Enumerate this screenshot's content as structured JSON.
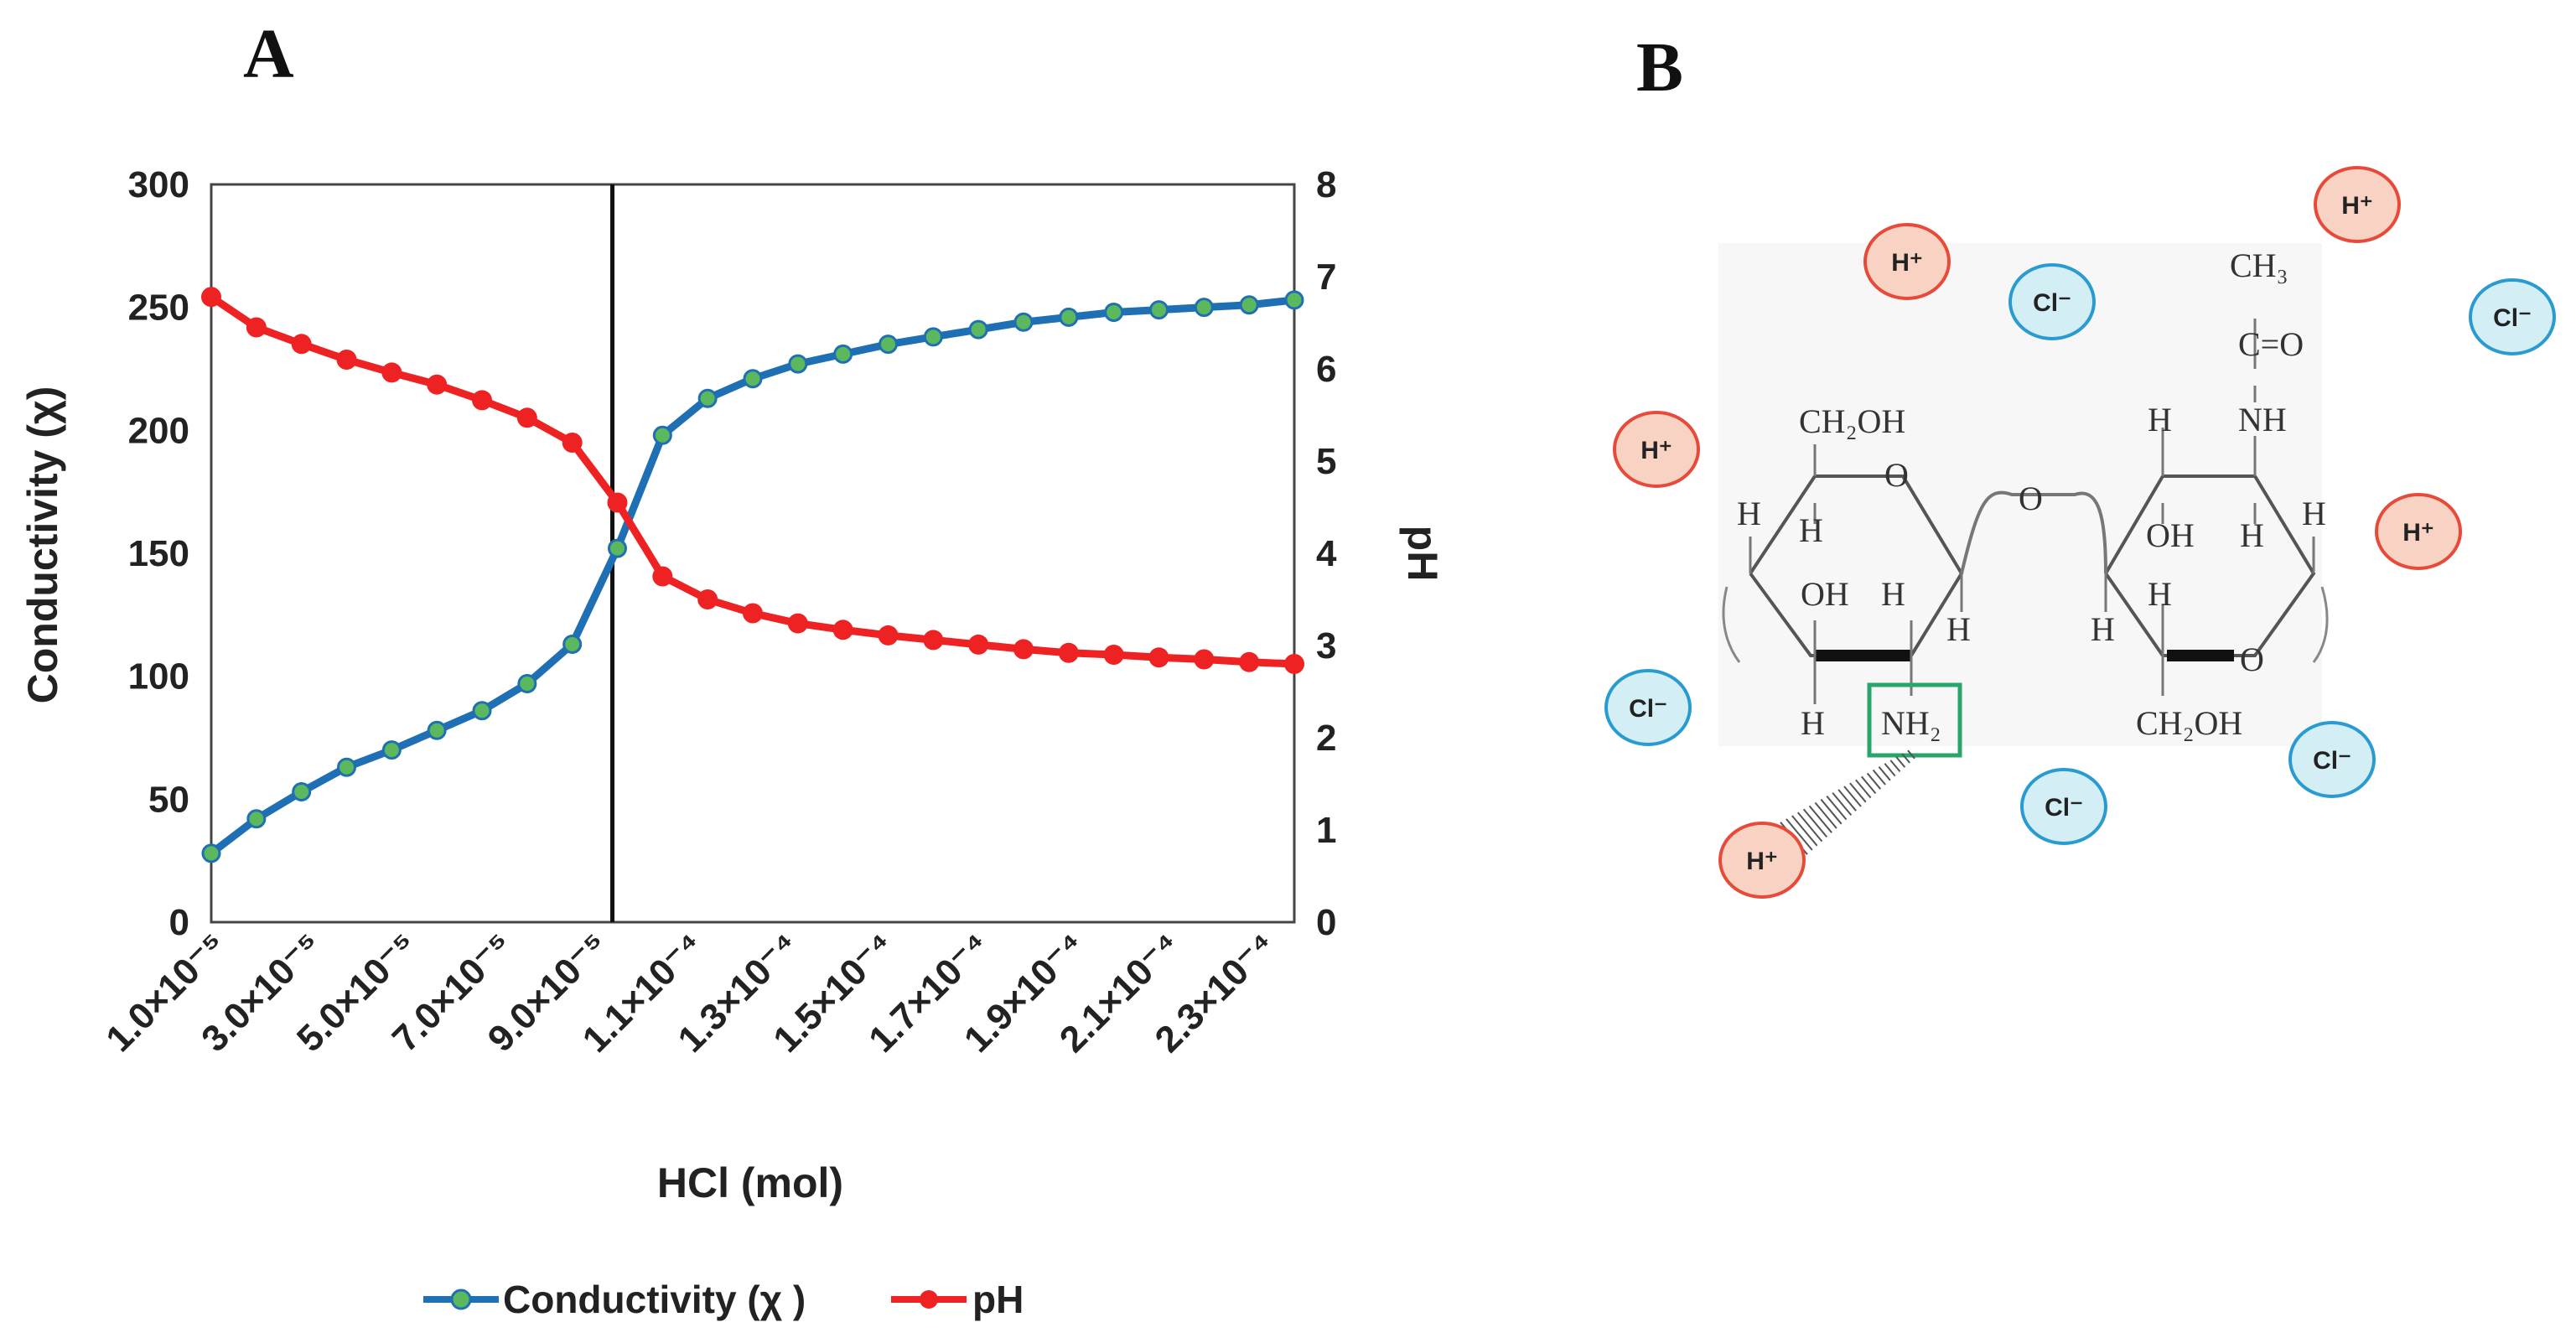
{
  "panels": {
    "a_letter": "A",
    "b_letter": "B"
  },
  "chart_data": {
    "type": "line",
    "x_tick_labels": [
      "1.0×10⁻⁵",
      "3.0×10⁻⁵",
      "5.0×10⁻⁵",
      "7.0×10⁻⁵",
      "9.0×10⁻⁵",
      "1.1×10⁻⁴",
      "1.3×10⁻⁴",
      "1.5×10⁻⁴",
      "1.7×10⁻⁴",
      "1.9×10⁻⁴",
      "2.1×10⁻⁴",
      "2.3×10⁻⁴"
    ],
    "x": [
      1e-05,
      1.5e-05,
      2e-05,
      2.5e-05,
      3e-05,
      3.5e-05,
      4e-05,
      4.5e-05,
      5e-05,
      5.5e-05,
      6e-05,
      6.5e-05,
      7e-05,
      7.5e-05,
      8e-05,
      8.5e-05,
      9e-05,
      9.5e-05,
      0.0001,
      0.000105,
      0.00011,
      0.000115,
      0.00012,
      0.000125,
      0.00013,
      0.000135,
      0.00014,
      0.000145,
      0.00015,
      0.000155,
      0.00016,
      0.000165,
      0.00017,
      0.000175,
      0.00018,
      0.000185,
      0.00019,
      0.000195,
      0.0002,
      0.000205,
      0.00021,
      0.000215,
      0.00022,
      0.000225,
      0.00023
    ],
    "x_index_values": [
      1,
      2,
      3,
      4,
      5,
      6,
      7,
      8,
      9,
      10,
      11,
      12,
      13,
      14,
      15,
      16,
      17,
      18,
      19,
      20,
      21,
      22,
      23,
      24,
      25
    ],
    "xlabel": "HCl (mol)",
    "ylabel_left": "Conductivity (χ)",
    "ylabel_right": "pH",
    "ylim_left": [
      0,
      300
    ],
    "ylim_right": [
      0,
      8
    ],
    "yticks_left": [
      "0",
      "50",
      "100",
      "150",
      "200",
      "250",
      "300"
    ],
    "yticks_right": [
      "0",
      "1",
      "2",
      "3",
      "4",
      "5",
      "6",
      "7",
      "8"
    ],
    "vline_x": 9e-05,
    "series": [
      {
        "name": "Conductivity (χ )",
        "axis": "left",
        "color": "#1f6fb5",
        "marker_color": "#5cb85c",
        "x": [
          1e-05,
          1.9e-05,
          2.8e-05,
          3.7e-05,
          4.6e-05,
          5.5e-05,
          6.4e-05,
          7.3e-05,
          8.2e-05,
          9.1e-05,
          0.0001,
          0.000109,
          0.000118,
          0.000127,
          0.000136,
          0.000145,
          0.000154,
          0.000163,
          0.000172,
          0.000181,
          0.00019,
          0.000199,
          0.000208,
          0.000217,
          0.000226
        ],
        "values": [
          28,
          42,
          53,
          63,
          70,
          78,
          86,
          97,
          113,
          152,
          198,
          213,
          221,
          227,
          231,
          235,
          238,
          241,
          244,
          246,
          248,
          249,
          250,
          251,
          253
        ]
      },
      {
        "name": "pH",
        "axis": "right",
        "color": "#ee2222",
        "marker_color": "#ee2222",
        "x": [
          1e-05,
          1.9e-05,
          2.8e-05,
          3.7e-05,
          4.6e-05,
          5.5e-05,
          6.4e-05,
          7.3e-05,
          8.2e-05,
          9.1e-05,
          0.0001,
          0.000109,
          0.000118,
          0.000127,
          0.000136,
          0.000145,
          0.000154,
          0.000163,
          0.000172,
          0.000181,
          0.00019,
          0.000199,
          0.000208,
          0.000217,
          0.000226
        ],
        "values": [
          6.78,
          6.45,
          6.27,
          6.1,
          5.96,
          5.83,
          5.66,
          5.47,
          5.2,
          4.55,
          3.75,
          3.5,
          3.35,
          3.24,
          3.17,
          3.11,
          3.06,
          3.01,
          2.96,
          2.92,
          2.9,
          2.87,
          2.85,
          2.82,
          2.8
        ]
      }
    ],
    "legend": {
      "placement": "bottom-center",
      "entries": [
        "Conductivity (χ )",
        "pH"
      ]
    }
  },
  "diagram": {
    "ions": [
      {
        "label": "H⁺",
        "type": "proton"
      },
      {
        "label": "Cl⁻",
        "type": "chloride"
      },
      {
        "label": "H⁺",
        "type": "proton"
      },
      {
        "label": "Cl⁻",
        "type": "chloride"
      },
      {
        "label": "H⁺",
        "type": "proton"
      },
      {
        "label": "H⁺",
        "type": "proton"
      },
      {
        "label": "Cl⁻",
        "type": "chloride"
      },
      {
        "label": "Cl⁻",
        "type": "chloride"
      },
      {
        "label": "Cl⁻",
        "type": "chloride"
      },
      {
        "label": "H⁺",
        "type": "proton"
      }
    ],
    "labels": {
      "ch2oh_top": "CH₂OH",
      "ch2oh_bottom": "CH₂OH",
      "ch3": "CH₃",
      "c_eq_o": "C=O",
      "nh": "NH",
      "nh2": "NH₂",
      "oh": "OH",
      "o": "O",
      "h": "H"
    },
    "colors": {
      "proton_fill": "#f8d3c4",
      "proton_stroke": "#e84a3a",
      "chloride_fill": "#d4eef6",
      "chloride_stroke": "#2a9bd0",
      "nh2_box": "#27a56b"
    }
  }
}
